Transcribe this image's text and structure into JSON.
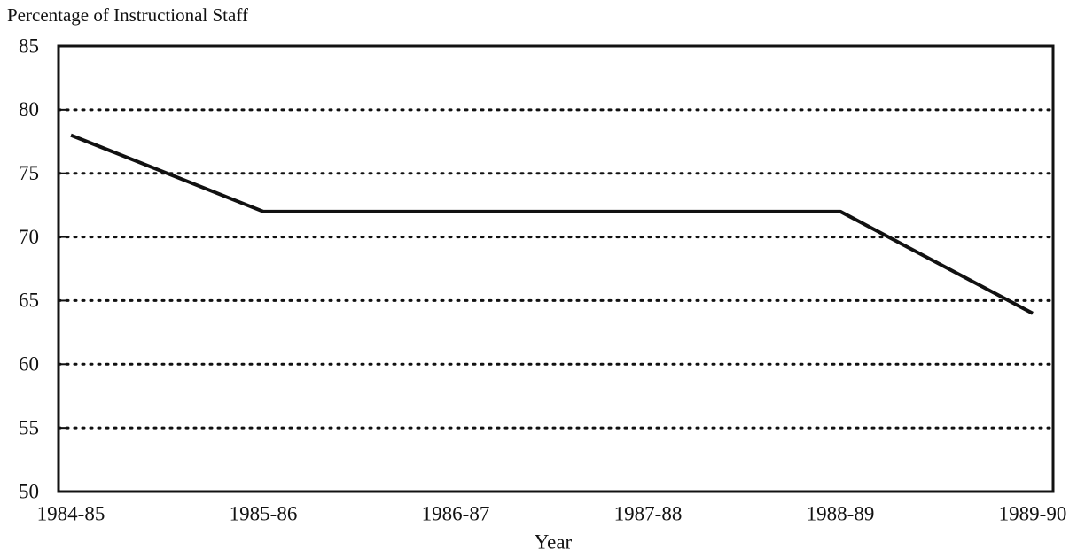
{
  "chart_data": {
    "type": "line",
    "ylabel": "Percentage of Instructional Staff",
    "xlabel": "Year",
    "categories": [
      "1984-85",
      "1985-86",
      "1986-87",
      "1987-88",
      "1988-89",
      "1989-90"
    ],
    "values": [
      78,
      72,
      72,
      72,
      72,
      64
    ],
    "color": "#111111",
    "ylim": [
      50,
      85
    ],
    "yticks": [
      50,
      55,
      60,
      65,
      70,
      75,
      80,
      85
    ],
    "grid": true
  }
}
